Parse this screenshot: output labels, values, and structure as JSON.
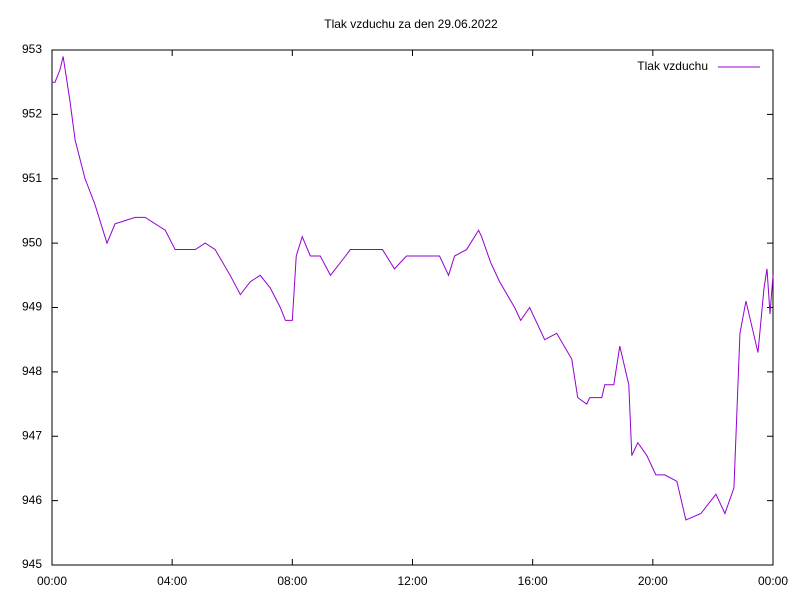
{
  "chart_data": {
    "type": "line",
    "title": "Tlak vzduchu za den 29.06.2022",
    "x": [
      0,
      0.1,
      0.27,
      0.37,
      0.6,
      0.77,
      1.1,
      1.43,
      1.83,
      2.1,
      2.77,
      3.1,
      3.77,
      4.1,
      4.77,
      5.1,
      5.43,
      5.93,
      6.27,
      6.6,
      6.93,
      7.27,
      7.6,
      7.77,
      8.0,
      8.13,
      8.33,
      8.6,
      8.93,
      9.27,
      9.77,
      9.93,
      11.0,
      11.4,
      11.8,
      12.9,
      13.2,
      13.4,
      13.8,
      14.2,
      14.3,
      14.6,
      14.9,
      15.4,
      15.6,
      15.9,
      16.4,
      16.8,
      17.3,
      17.5,
      17.8,
      17.9,
      18.3,
      18.4,
      18.7,
      18.9,
      19.2,
      19.3,
      19.5,
      19.8,
      20.1,
      20.4,
      20.8,
      21.1,
      21.6,
      22.1,
      22.4,
      22.7,
      22.8,
      22.9,
      23.1,
      23.3,
      23.5,
      23.7,
      23.8,
      23.9,
      24.0
    ],
    "series": [
      {
        "name": "Tlak vzduchu",
        "color": "#9400d3",
        "values": [
          952.5,
          952.5,
          952.7,
          952.9,
          952.2,
          951.6,
          951.0,
          950.6,
          950.0,
          950.3,
          950.4,
          950.4,
          950.2,
          949.9,
          949.9,
          950.0,
          949.9,
          949.5,
          949.2,
          949.4,
          949.5,
          949.3,
          949.0,
          948.8,
          948.8,
          949.8,
          950.1,
          949.8,
          949.8,
          949.5,
          949.8,
          949.9,
          949.9,
          949.6,
          949.8,
          949.8,
          949.5,
          949.8,
          949.9,
          950.2,
          950.1,
          949.7,
          949.4,
          949.0,
          948.8,
          949.0,
          948.5,
          948.6,
          948.2,
          947.6,
          947.5,
          947.6,
          947.6,
          947.8,
          947.8,
          948.4,
          947.8,
          946.7,
          946.9,
          946.7,
          946.4,
          946.4,
          946.3,
          945.7,
          945.8,
          946.1,
          945.8,
          946.2,
          947.4,
          948.6,
          949.1,
          948.7,
          948.3,
          949.3,
          949.6,
          948.9,
          949.5
        ]
      }
    ],
    "xlim": [
      0,
      24
    ],
    "xticks": [
      {
        "value": 0,
        "label": "00:00"
      },
      {
        "value": 4,
        "label": "04:00"
      },
      {
        "value": 8,
        "label": "08:00"
      },
      {
        "value": 12,
        "label": "12:00"
      },
      {
        "value": 16,
        "label": "16:00"
      },
      {
        "value": 20,
        "label": "20:00"
      },
      {
        "value": 24,
        "label": "00:00"
      }
    ],
    "ylim": [
      945,
      953
    ],
    "yticks": [
      945,
      946,
      947,
      948,
      949,
      950,
      951,
      952,
      953
    ],
    "grid": false,
    "legend": "top-right"
  }
}
